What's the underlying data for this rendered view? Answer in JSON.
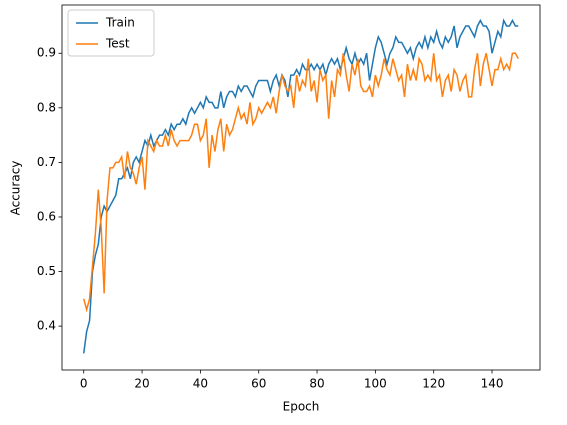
{
  "chart_data": {
    "type": "line",
    "x_label": "Epoch",
    "y_label": "Accuracy",
    "x": [
      0,
      1,
      2,
      3,
      4,
      5,
      6,
      7,
      8,
      9,
      10,
      11,
      12,
      13,
      14,
      15,
      16,
      17,
      18,
      19,
      20,
      21,
      22,
      23,
      24,
      25,
      26,
      27,
      28,
      29,
      30,
      31,
      32,
      33,
      34,
      35,
      36,
      37,
      38,
      39,
      40,
      41,
      42,
      43,
      44,
      45,
      46,
      47,
      48,
      49,
      50,
      51,
      52,
      53,
      54,
      55,
      56,
      57,
      58,
      59,
      60,
      61,
      62,
      63,
      64,
      65,
      66,
      67,
      68,
      69,
      70,
      71,
      72,
      73,
      74,
      75,
      76,
      77,
      78,
      79,
      80,
      81,
      82,
      83,
      84,
      85,
      86,
      87,
      88,
      89,
      90,
      91,
      92,
      93,
      94,
      95,
      96,
      97,
      98,
      99,
      100,
      101,
      102,
      103,
      104,
      105,
      106,
      107,
      108,
      109,
      110,
      111,
      112,
      113,
      114,
      115,
      116,
      117,
      118,
      119,
      120,
      121,
      122,
      123,
      124,
      125,
      126,
      127,
      128,
      129,
      130,
      131,
      132,
      133,
      134,
      135,
      136,
      137,
      138,
      139,
      140,
      141,
      142,
      143,
      144,
      145,
      146,
      147,
      148,
      149
    ],
    "series": [
      {
        "name": "Train",
        "color": "#1f77b4",
        "values": [
          0.35,
          0.39,
          0.41,
          0.5,
          0.53,
          0.55,
          0.6,
          0.62,
          0.61,
          0.62,
          0.63,
          0.64,
          0.67,
          0.67,
          0.68,
          0.69,
          0.67,
          0.7,
          0.71,
          0.7,
          0.72,
          0.74,
          0.73,
          0.75,
          0.73,
          0.74,
          0.75,
          0.75,
          0.76,
          0.75,
          0.77,
          0.76,
          0.77,
          0.77,
          0.78,
          0.77,
          0.79,
          0.8,
          0.79,
          0.8,
          0.81,
          0.8,
          0.82,
          0.81,
          0.81,
          0.8,
          0.8,
          0.83,
          0.8,
          0.82,
          0.83,
          0.83,
          0.82,
          0.84,
          0.83,
          0.84,
          0.84,
          0.83,
          0.82,
          0.84,
          0.85,
          0.85,
          0.85,
          0.85,
          0.83,
          0.85,
          0.86,
          0.84,
          0.86,
          0.85,
          0.82,
          0.86,
          0.86,
          0.87,
          0.86,
          0.88,
          0.87,
          0.87,
          0.88,
          0.87,
          0.88,
          0.87,
          0.88,
          0.86,
          0.88,
          0.89,
          0.88,
          0.89,
          0.87,
          0.89,
          0.91,
          0.89,
          0.88,
          0.9,
          0.88,
          0.89,
          0.88,
          0.9,
          0.85,
          0.88,
          0.91,
          0.93,
          0.92,
          0.9,
          0.88,
          0.9,
          0.91,
          0.93,
          0.92,
          0.92,
          0.91,
          0.9,
          0.91,
          0.89,
          0.91,
          0.92,
          0.91,
          0.93,
          0.91,
          0.93,
          0.92,
          0.94,
          0.92,
          0.91,
          0.93,
          0.92,
          0.93,
          0.95,
          0.91,
          0.93,
          0.94,
          0.95,
          0.95,
          0.94,
          0.93,
          0.95,
          0.96,
          0.95,
          0.95,
          0.94,
          0.9,
          0.92,
          0.94,
          0.93,
          0.96,
          0.95,
          0.95,
          0.96,
          0.95,
          0.95
        ]
      },
      {
        "name": "Test",
        "color": "#ff7f0e",
        "values": [
          0.45,
          0.43,
          0.45,
          0.51,
          0.57,
          0.65,
          0.58,
          0.46,
          0.63,
          0.69,
          0.69,
          0.7,
          0.7,
          0.71,
          0.67,
          0.72,
          0.69,
          0.68,
          0.66,
          0.69,
          0.71,
          0.65,
          0.74,
          0.73,
          0.72,
          0.74,
          0.73,
          0.73,
          0.75,
          0.73,
          0.76,
          0.74,
          0.73,
          0.74,
          0.74,
          0.74,
          0.74,
          0.75,
          0.77,
          0.77,
          0.74,
          0.75,
          0.78,
          0.69,
          0.75,
          0.72,
          0.76,
          0.78,
          0.72,
          0.77,
          0.75,
          0.76,
          0.78,
          0.8,
          0.78,
          0.79,
          0.77,
          0.81,
          0.77,
          0.78,
          0.8,
          0.79,
          0.8,
          0.81,
          0.8,
          0.82,
          0.79,
          0.83,
          0.86,
          0.84,
          0.83,
          0.84,
          0.8,
          0.86,
          0.83,
          0.85,
          0.84,
          0.89,
          0.83,
          0.85,
          0.81,
          0.87,
          0.85,
          0.86,
          0.78,
          0.85,
          0.82,
          0.87,
          0.86,
          0.9,
          0.86,
          0.83,
          0.88,
          0.86,
          0.89,
          0.84,
          0.83,
          0.83,
          0.84,
          0.82,
          0.86,
          0.84,
          0.86,
          0.89,
          0.87,
          0.86,
          0.89,
          0.87,
          0.85,
          0.86,
          0.82,
          0.88,
          0.85,
          0.87,
          0.85,
          0.89,
          0.88,
          0.85,
          0.86,
          0.85,
          0.9,
          0.85,
          0.86,
          0.82,
          0.85,
          0.86,
          0.83,
          0.87,
          0.86,
          0.83,
          0.85,
          0.86,
          0.82,
          0.82,
          0.87,
          0.9,
          0.84,
          0.88,
          0.9,
          0.87,
          0.84,
          0.87,
          0.87,
          0.89,
          0.87,
          0.88,
          0.87,
          0.9,
          0.9,
          0.89
        ]
      }
    ],
    "xlim": [
      -7.45,
      156.45
    ],
    "xticks": [
      0,
      20,
      40,
      60,
      80,
      100,
      120,
      140
    ],
    "ylim": [
      0.3196,
      0.9884
    ],
    "yticks": [
      0.4,
      0.5,
      0.6,
      0.7,
      0.8,
      0.9
    ],
    "legend": "upper left"
  }
}
